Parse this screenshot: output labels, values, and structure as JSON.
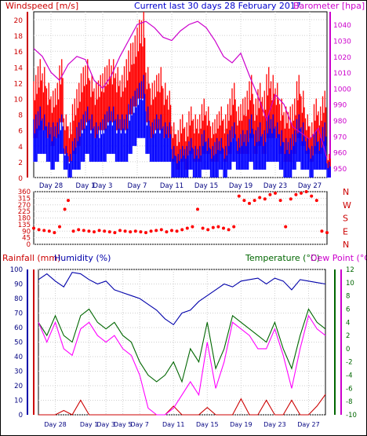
{
  "header": {
    "left": "Windspeed [m/s]",
    "center": "Current last 30 days 28 February 2017",
    "right": "Barometer [hpa]"
  },
  "mid_header": {
    "rain": "Rainfall (mm)",
    "humidity": "Humidity (%)",
    "temperature": "Temperature (°C)",
    "dewpoint": "Dew Point (°C)"
  },
  "colors": {
    "gust": "#ff0000",
    "wind": "#0000ff",
    "baro": "#cc00cc",
    "direction": "#ff0000",
    "temperature": "#006600",
    "dewpoint": "#ff00ff",
    "humidity": "#0000aa",
    "rain": "#cc0000",
    "grid": "#cfcfcf"
  },
  "chart_data": [
    {
      "type": "line",
      "name": "wind",
      "x_ticks": [
        "Day 28",
        "Day 1",
        "Day 3",
        "Day 7",
        "Day 11",
        "Day 15",
        "Day 19",
        "Day 23",
        "Day 27"
      ],
      "x_tick_pos": [
        2,
        6,
        8,
        12,
        16,
        20,
        24,
        28,
        32
      ],
      "x_range": [
        0,
        34
      ],
      "ylim_left": [
        0,
        21
      ],
      "yticks_left": [
        0,
        2,
        4,
        6,
        8,
        10,
        12,
        14,
        16,
        18,
        20
      ],
      "ylim_right": [
        944,
        1048
      ],
      "yticks_right": [
        950,
        960,
        970,
        980,
        990,
        1000,
        1010,
        1020,
        1030,
        1040
      ],
      "series": [
        {
          "axis": "left",
          "kind": "band",
          "color": "#ff0000",
          "x": [
            0,
            0.5,
            1,
            1.5,
            2,
            2.5,
            3,
            3.5,
            4,
            4.5,
            5,
            5.5,
            6,
            6.5,
            7,
            7.5,
            8,
            8.5,
            9,
            9.5,
            10,
            10.5,
            11,
            11.5,
            12,
            12.5,
            13,
            13.5,
            14,
            14.5,
            15,
            15.5,
            16,
            16.5,
            17,
            17.5,
            18,
            18.5,
            19,
            19.5,
            20,
            20.5,
            21,
            21.5,
            22,
            22.5,
            23,
            23.5,
            24,
            24.5,
            25,
            25.5,
            26,
            26.5,
            27,
            27.5,
            28,
            28.5,
            29,
            29.5,
            30,
            30.5,
            31,
            31.5,
            32,
            32.5,
            33,
            33.5,
            34
          ],
          "high": [
            13,
            15,
            14,
            12,
            11,
            12,
            15,
            8,
            7,
            10,
            12,
            14,
            15,
            13,
            12,
            13,
            14,
            15,
            15,
            14,
            13,
            15,
            17,
            18,
            20,
            21,
            14,
            12,
            13,
            14,
            12,
            11,
            7,
            6,
            8,
            7,
            9,
            8,
            8,
            10,
            9,
            7,
            8,
            9,
            8,
            10,
            12,
            9,
            10,
            11,
            13,
            10,
            12,
            11,
            14,
            13,
            12,
            10,
            9,
            9,
            10,
            13,
            11,
            8,
            7,
            10,
            9,
            11,
            3
          ],
          "low": [
            5,
            6,
            6,
            5,
            4,
            5,
            7,
            3,
            2,
            3,
            4,
            6,
            7,
            6,
            5,
            6,
            6,
            7,
            7,
            6,
            6,
            6,
            8,
            9,
            10,
            10,
            7,
            5,
            6,
            6,
            5,
            5,
            2,
            1,
            2,
            1,
            3,
            2,
            2,
            3,
            3,
            2,
            2,
            3,
            2,
            3,
            5,
            3,
            3,
            3,
            5,
            3,
            4,
            3,
            5,
            5,
            5,
            3,
            2,
            2,
            3,
            5,
            4,
            3,
            2,
            3,
            3,
            4,
            1
          ]
        },
        {
          "axis": "left",
          "kind": "band",
          "color": "#0000ff",
          "x": [
            0,
            0.5,
            1,
            1.5,
            2,
            2.5,
            3,
            3.5,
            4,
            4.5,
            5,
            5.5,
            6,
            6.5,
            7,
            7.5,
            8,
            8.5,
            9,
            9.5,
            10,
            10.5,
            11,
            11.5,
            12,
            12.5,
            13,
            13.5,
            14,
            14.5,
            15,
            15.5,
            16,
            16.5,
            17,
            17.5,
            18,
            18.5,
            19,
            19.5,
            20,
            20.5,
            21,
            21.5,
            22,
            22.5,
            23,
            23.5,
            24,
            24.5,
            25,
            25.5,
            26,
            26.5,
            27,
            27.5,
            28,
            28.5,
            29,
            29.5,
            30,
            30.5,
            31,
            31.5,
            32,
            32.5,
            33,
            33.5,
            34
          ],
          "high": [
            8,
            9,
            8,
            7,
            7,
            7,
            8,
            4,
            3,
            5,
            7,
            8,
            9,
            8,
            7,
            7,
            8,
            9,
            9,
            8,
            8,
            8,
            10,
            11,
            12,
            13,
            9,
            7,
            8,
            8,
            7,
            7,
            4,
            3,
            4,
            4,
            5,
            4,
            4,
            6,
            5,
            4,
            5,
            5,
            4,
            6,
            7,
            5,
            6,
            6,
            8,
            6,
            7,
            6,
            8,
            8,
            7,
            6,
            5,
            5,
            6,
            8,
            7,
            5,
            4,
            6,
            5,
            7,
            2
          ],
          "low": [
            2,
            3,
            3,
            2,
            1,
            2,
            3,
            1,
            0,
            1,
            1,
            2,
            3,
            2,
            2,
            2,
            2,
            3,
            3,
            2,
            2,
            2,
            3,
            4,
            5,
            5,
            3,
            2,
            2,
            2,
            2,
            2,
            0,
            0,
            0,
            0,
            1,
            0,
            0,
            1,
            1,
            0,
            0,
            1,
            0,
            1,
            2,
            1,
            1,
            1,
            2,
            1,
            1,
            1,
            2,
            2,
            2,
            1,
            0,
            0,
            1,
            2,
            1,
            1,
            0,
            1,
            1,
            1,
            0
          ]
        },
        {
          "axis": "right",
          "kind": "line",
          "color": "#cc00cc",
          "x": [
            0,
            1,
            2,
            3,
            4,
            5,
            6,
            7,
            8,
            9,
            10,
            11,
            12,
            13,
            14,
            15,
            16,
            17,
            18,
            19,
            20,
            21,
            22,
            23,
            24,
            25,
            26,
            27,
            28,
            29,
            30,
            31,
            32,
            33,
            34
          ],
          "values": [
            1025,
            1020,
            1010,
            1005,
            1015,
            1020,
            1018,
            1005,
            1000,
            1008,
            1020,
            1030,
            1040,
            1042,
            1038,
            1032,
            1030,
            1036,
            1040,
            1042,
            1038,
            1030,
            1020,
            1016,
            1022,
            1008,
            995,
            980,
            996,
            990,
            976,
            972,
            968,
            975,
            956
          ]
        }
      ]
    },
    {
      "type": "scatter",
      "name": "wind-direction",
      "x_range": [
        0,
        34
      ],
      "ylim": [
        0,
        360
      ],
      "yticks": [
        0,
        45,
        90,
        135,
        180,
        225,
        270,
        315,
        360
      ],
      "right_labels": [
        "N",
        "W",
        "S",
        "E",
        "N"
      ],
      "right_label_values": [
        360,
        270,
        180,
        90,
        0
      ],
      "points_x": [
        0,
        0.6,
        1.2,
        1.8,
        2.4,
        3.0,
        3.6,
        4.0,
        4.6,
        5.2,
        5.8,
        6.4,
        7.0,
        7.6,
        8.2,
        8.8,
        9.4,
        10.0,
        10.6,
        11.2,
        11.8,
        12.4,
        13.0,
        13.6,
        14.2,
        14.8,
        15.4,
        16.0,
        16.6,
        17.2,
        17.8,
        18.4,
        19.0,
        19.6,
        20.2,
        20.8,
        21.4,
        22.0,
        22.6,
        23.2,
        23.8,
        24.4,
        25.0,
        25.6,
        26.2,
        26.8,
        27.4,
        28.0,
        28.6,
        29.2,
        29.8,
        30.4,
        31.0,
        31.6,
        32.2,
        32.8,
        33.4,
        34.0
      ],
      "points_y": [
        110,
        100,
        95,
        90,
        80,
        120,
        240,
        300,
        90,
        100,
        95,
        90,
        85,
        95,
        90,
        85,
        80,
        95,
        90,
        85,
        90,
        85,
        80,
        90,
        95,
        100,
        85,
        95,
        90,
        100,
        110,
        120,
        240,
        110,
        100,
        115,
        120,
        110,
        100,
        120,
        330,
        300,
        280,
        300,
        320,
        310,
        340,
        350,
        300,
        120,
        310,
        340,
        350,
        360,
        330,
        300,
        90,
        80
      ]
    },
    {
      "type": "line",
      "name": "temperature-humidity-rain",
      "x_ticks": [
        "Day 28",
        "Day 1",
        "Day 3",
        "Day 5",
        "Day 7",
        "Day 11",
        "Day 15",
        "Day 19",
        "Day 23",
        "Day 27"
      ],
      "x_tick_pos": [
        2,
        6,
        8,
        10,
        12,
        16,
        20,
        24,
        28,
        32
      ],
      "x_range": [
        0,
        34
      ],
      "ylim_left": [
        0,
        100
      ],
      "yticks_left": [
        0,
        10,
        20,
        30,
        40,
        50,
        60,
        70,
        80,
        90,
        100
      ],
      "ylim_right": [
        -10,
        12
      ],
      "yticks_right": [
        -10,
        -8,
        -6,
        -4,
        -2,
        0,
        2,
        4,
        6,
        8,
        10,
        12
      ],
      "series": [
        {
          "axis": "left",
          "kind": "line",
          "color": "#0000aa",
          "x": [
            0,
            1,
            2,
            3,
            4,
            5,
            6,
            7,
            8,
            9,
            10,
            11,
            12,
            13,
            14,
            15,
            16,
            17,
            18,
            19,
            20,
            21,
            22,
            23,
            24,
            25,
            26,
            27,
            28,
            29,
            30,
            31,
            32,
            33,
            34
          ],
          "values": [
            93,
            97,
            92,
            88,
            98,
            97,
            93,
            90,
            92,
            86,
            84,
            82,
            80,
            76,
            72,
            66,
            62,
            70,
            72,
            78,
            82,
            86,
            90,
            88,
            92,
            93,
            94,
            90,
            94,
            92,
            86,
            93,
            92,
            91,
            90
          ]
        },
        {
          "axis": "left",
          "kind": "line",
          "color": "#cc0000",
          "x": [
            0,
            1,
            2,
            3,
            4,
            5,
            6,
            7,
            8,
            9,
            10,
            11,
            12,
            13,
            14,
            15,
            16,
            17,
            18,
            19,
            20,
            21,
            22,
            23,
            24,
            25,
            26,
            27,
            28,
            29,
            30,
            31,
            32,
            33,
            34
          ],
          "values": [
            0,
            0,
            0,
            3,
            0,
            10,
            0,
            0,
            0,
            0,
            0,
            0,
            0,
            0,
            0,
            0,
            6,
            0,
            0,
            0,
            5,
            0,
            0,
            0,
            11,
            0,
            0,
            10,
            0,
            0,
            10,
            0,
            0,
            6,
            14
          ]
        },
        {
          "axis": "right",
          "kind": "line",
          "color": "#006600",
          "x": [
            0,
            1,
            2,
            3,
            4,
            5,
            6,
            7,
            8,
            9,
            10,
            11,
            12,
            13,
            14,
            15,
            16,
            17,
            18,
            19,
            20,
            21,
            22,
            23,
            24,
            25,
            26,
            27,
            28,
            29,
            30,
            31,
            32,
            33,
            34
          ],
          "values": [
            4,
            2,
            5,
            2,
            1,
            5,
            6,
            4,
            3,
            4,
            2,
            1,
            -2,
            -4,
            -5,
            -4,
            -2,
            -5,
            0,
            -2,
            4,
            -3,
            0,
            5,
            4,
            3,
            2,
            1,
            4,
            0,
            -3,
            2,
            6,
            4,
            3
          ]
        },
        {
          "axis": "right",
          "kind": "line",
          "color": "#ff00ff",
          "x": [
            0,
            1,
            2,
            3,
            4,
            5,
            6,
            7,
            8,
            9,
            10,
            11,
            12,
            13,
            14,
            15,
            16,
            17,
            18,
            19,
            20,
            21,
            22,
            23,
            24,
            25,
            26,
            27,
            28,
            29,
            30,
            31,
            32,
            33,
            34
          ],
          "values": [
            4,
            1,
            4,
            0,
            -1,
            3,
            4,
            2,
            1,
            2,
            0,
            -1,
            -4,
            -9,
            -10,
            -10,
            -9,
            -7,
            -5,
            -7,
            1,
            -6,
            -2,
            4,
            3,
            2,
            0,
            0,
            3,
            -1,
            -6,
            0,
            5,
            3,
            2
          ]
        }
      ]
    }
  ]
}
